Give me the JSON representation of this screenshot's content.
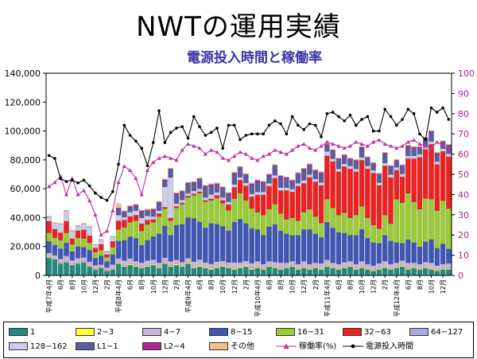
{
  "title": "NWTの運用実績",
  "subtitle": "電源投入時間と稼働率",
  "chart_data": {
    "type": "bar",
    "stacked": true,
    "title": "NWTの運用実績",
    "subtitle": "電源投入時間と稼働率",
    "xlabel": "",
    "ylabel": "",
    "ylim": [
      0,
      140000
    ],
    "y2lim": [
      0,
      100
    ],
    "yticks": [
      "0",
      "20,000",
      "40,000",
      "60,000",
      "80,000",
      "100,000",
      "120,000",
      "140,000"
    ],
    "y2ticks": [
      "0",
      "10",
      "20",
      "30",
      "40",
      "50",
      "60",
      "70",
      "80",
      "90",
      "100"
    ],
    "xtick_labels": [
      {
        "i": 0,
        "label": "平成7年4月"
      },
      {
        "i": 2,
        "label": "6月"
      },
      {
        "i": 4,
        "label": "8月"
      },
      {
        "i": 6,
        "label": "10月"
      },
      {
        "i": 8,
        "label": "12月"
      },
      {
        "i": 10,
        "label": "2月"
      },
      {
        "i": 12,
        "label": "平成8年4月"
      },
      {
        "i": 14,
        "label": "6月"
      },
      {
        "i": 16,
        "label": "8月"
      },
      {
        "i": 18,
        "label": "10月"
      },
      {
        "i": 20,
        "label": "12月"
      },
      {
        "i": 22,
        "label": "2月"
      },
      {
        "i": 24,
        "label": "平成9年4月"
      },
      {
        "i": 26,
        "label": "6月"
      },
      {
        "i": 28,
        "label": "8月"
      },
      {
        "i": 30,
        "label": "10月"
      },
      {
        "i": 32,
        "label": "12月"
      },
      {
        "i": 34,
        "label": "2月"
      },
      {
        "i": 36,
        "label": "平成10年4月"
      },
      {
        "i": 38,
        "label": "6月"
      },
      {
        "i": 40,
        "label": "8月"
      },
      {
        "i": 42,
        "label": "10月"
      },
      {
        "i": 44,
        "label": "12月"
      },
      {
        "i": 46,
        "label": "2月"
      },
      {
        "i": 48,
        "label": "平成11年4月"
      },
      {
        "i": 50,
        "label": "6月"
      },
      {
        "i": 52,
        "label": "8月"
      },
      {
        "i": 54,
        "label": "10月"
      },
      {
        "i": 56,
        "label": "12月"
      },
      {
        "i": 58,
        "label": "2月"
      },
      {
        "i": 60,
        "label": "平成12年4月"
      },
      {
        "i": 62,
        "label": "6月"
      },
      {
        "i": 64,
        "label": "8月"
      },
      {
        "i": 66,
        "label": "10月"
      },
      {
        "i": 68,
        "label": "12月"
      }
    ],
    "series": [
      {
        "name": "1",
        "color": "#1f8a80",
        "values": [
          12000,
          11000,
          8000,
          9000,
          7000,
          8000,
          9000,
          6000,
          4000,
          5000,
          3000,
          4000,
          8000,
          6000,
          7000,
          6000,
          5000,
          6000,
          7000,
          5000,
          8000,
          6000,
          7000,
          6000,
          8000,
          5000,
          6000,
          5000,
          4000,
          5000,
          6000,
          5000,
          4000,
          5000,
          6000,
          4000,
          5000,
          4000,
          6000,
          5000,
          4000,
          5000,
          6000,
          4000,
          5000,
          4000,
          5000,
          4000,
          6000,
          5000,
          4000,
          5000,
          6000,
          4000,
          5000,
          4000,
          3000,
          4000,
          5000,
          4000,
          5000,
          6000,
          4000,
          5000,
          4000,
          5000,
          4000,
          3000,
          4000,
          4000
        ]
      },
      {
        "name": "2−3",
        "color": "#ffff33",
        "values": [
          500,
          500,
          500,
          500,
          500,
          500,
          500,
          500,
          500,
          500,
          500,
          500,
          800,
          800,
          800,
          800,
          800,
          800,
          800,
          800,
          800,
          800,
          800,
          800,
          1000,
          1000,
          1000,
          1000,
          1000,
          1000,
          1000,
          1000,
          1000,
          1000,
          1000,
          1000,
          800,
          800,
          800,
          800,
          800,
          800,
          800,
          800,
          800,
          800,
          800,
          800,
          800,
          800,
          800,
          800,
          800,
          800,
          800,
          800,
          800,
          800,
          800,
          800,
          800,
          800,
          800,
          800,
          800,
          800,
          800,
          800,
          800,
          800
        ]
      },
      {
        "name": "4−7",
        "color": "#c9b4dd",
        "values": [
          3000,
          2500,
          3000,
          4000,
          3000,
          3500,
          3000,
          3000,
          2500,
          2000,
          2000,
          3000,
          3000,
          3500,
          4000,
          3000,
          3000,
          3500,
          3000,
          3000,
          3500,
          3000,
          3000,
          2500,
          3000,
          3500,
          4000,
          3000,
          3000,
          3500,
          3000,
          3000,
          4000,
          3000,
          3000,
          3500,
          4000,
          3000,
          3000,
          3500,
          4000,
          3000,
          3000,
          3000,
          4000,
          3000,
          3000,
          3500,
          4000,
          3000,
          3000,
          3500,
          3000,
          3000,
          4000,
          3000,
          3000,
          3500,
          4000,
          3000,
          3000,
          3500,
          4000,
          3000,
          3000,
          3500,
          4000,
          3000,
          3000,
          3500
        ]
      },
      {
        "name": "8−15",
        "color": "#3f56b6",
        "values": [
          8000,
          7000,
          7000,
          9000,
          6000,
          8000,
          7000,
          8000,
          5000,
          6000,
          4000,
          7000,
          12000,
          14000,
          15000,
          16000,
          12000,
          14000,
          16000,
          20000,
          22000,
          18000,
          24000,
          26000,
          28000,
          30000,
          26000,
          24000,
          28000,
          26000,
          24000,
          22000,
          28000,
          30000,
          26000,
          24000,
          22000,
          20000,
          24000,
          26000,
          22000,
          20000,
          18000,
          20000,
          22000,
          24000,
          20000,
          18000,
          26000,
          24000,
          22000,
          20000,
          18000,
          20000,
          22000,
          18000,
          16000,
          14000,
          18000,
          16000,
          14000,
          12000,
          16000,
          14000,
          12000,
          14000,
          16000,
          12000,
          14000,
          10000
        ]
      },
      {
        "name": "16−31",
        "color": "#99cc33",
        "values": [
          6000,
          5000,
          6000,
          7000,
          5000,
          6000,
          6000,
          5000,
          4000,
          4000,
          3000,
          5000,
          8000,
          9000,
          10000,
          12000,
          10000,
          11000,
          10000,
          12000,
          12000,
          10000,
          12000,
          14000,
          14000,
          16000,
          20000,
          18000,
          16000,
          18000,
          16000,
          14000,
          16000,
          18000,
          16000,
          14000,
          12000,
          14000,
          12000,
          14000,
          12000,
          10000,
          12000,
          10000,
          12000,
          14000,
          12000,
          10000,
          16000,
          14000,
          12000,
          14000,
          12000,
          14000,
          16000,
          14000,
          12000,
          10000,
          14000,
          12000,
          30000,
          28000,
          32000,
          28000,
          26000,
          30000,
          28000,
          26000,
          30000,
          28000
        ]
      },
      {
        "name": "32−63",
        "color": "#ee2020",
        "values": [
          8000,
          6000,
          5000,
          8000,
          4000,
          5000,
          6000,
          5000,
          3000,
          4000,
          2000,
          4000,
          6000,
          5000,
          4000,
          4000,
          5000,
          3000,
          2000,
          2000,
          1000,
          2000,
          1000,
          1000,
          1000,
          1000,
          1000,
          1000,
          1000,
          2000,
          2000,
          4000,
          8000,
          9000,
          10000,
          8000,
          12000,
          14000,
          16000,
          18000,
          16000,
          20000,
          18000,
          24000,
          20000,
          22000,
          24000,
          26000,
          30000,
          32000,
          30000,
          32000,
          34000,
          30000,
          32000,
          34000,
          36000,
          30000,
          34000,
          32000,
          20000,
          18000,
          24000,
          30000,
          36000,
          34000,
          38000,
          32000,
          34000,
          36000
        ]
      },
      {
        "name": "64−127",
        "color": "#aaaadd",
        "values": [
          0,
          0,
          0,
          0,
          0,
          0,
          0,
          0,
          0,
          0,
          0,
          0,
          0,
          0,
          0,
          0,
          0,
          0,
          0,
          0,
          0,
          0,
          0,
          0,
          0,
          0,
          0,
          0,
          0,
          0,
          0,
          0,
          0,
          0,
          0,
          0,
          0,
          0,
          0,
          0,
          0,
          0,
          0,
          0,
          0,
          0,
          0,
          0,
          0,
          0,
          0,
          0,
          0,
          0,
          0,
          0,
          0,
          0,
          0,
          0,
          0,
          0,
          0,
          0,
          0,
          0,
          0,
          0,
          0,
          0
        ]
      },
      {
        "name": "128−162",
        "color": "#ccccec",
        "values": [
          3000,
          4000,
          6000,
          7000,
          5000,
          3000,
          4000,
          6000,
          2000,
          3000,
          2000,
          3000,
          4000,
          2000,
          3000,
          3000,
          4000,
          3000,
          2000,
          2000,
          14000,
          28000,
          2000,
          2000,
          2000,
          2000,
          2000,
          2000,
          3000,
          2000,
          2000,
          2000,
          2000,
          2000,
          2000,
          2000,
          2000,
          2000,
          2000,
          2000,
          2000,
          2000,
          2000,
          2000,
          2000,
          2000,
          2000,
          2000,
          3000,
          2000,
          2000,
          2000,
          2000,
          2000,
          2000,
          2000,
          2000,
          2000,
          2000,
          2000,
          2000,
          2000,
          2000,
          2000,
          2000,
          2000,
          2000,
          2000,
          2000,
          2000
        ]
      },
      {
        "name": "L1−1",
        "color": "#5a5c9e",
        "values": [
          0,
          0,
          0,
          0,
          0,
          0,
          0,
          0,
          0,
          0,
          0,
          0,
          4000,
          3000,
          3000,
          3000,
          4000,
          3000,
          4000,
          5000,
          4000,
          5000,
          6000,
          5000,
          6000,
          5000,
          6000,
          7000,
          6000,
          5000,
          6000,
          5000,
          7000,
          6000,
          5000,
          6000,
          7000,
          6000,
          5000,
          6000,
          7000,
          6000,
          5000,
          6000,
          7000,
          6000,
          5000,
          6000,
          4000,
          5000,
          6000,
          5000,
          4000,
          5000,
          6000,
          5000,
          4000,
          5000,
          6000,
          5000,
          4000,
          5000,
          6000,
          5000,
          4000,
          5000,
          6000,
          5000,
          4000,
          5000
        ]
      },
      {
        "name": "L2−4",
        "color": "#b0279a",
        "values": [
          0,
          0,
          0,
          0,
          0,
          0,
          0,
          0,
          0,
          0,
          0,
          0,
          1000,
          1000,
          1000,
          1000,
          1000,
          1000,
          1000,
          1000,
          1000,
          1000,
          1000,
          1000,
          1000,
          1000,
          1000,
          1000,
          1000,
          1000,
          1000,
          1000,
          1000,
          1000,
          1000,
          1000,
          1000,
          1000,
          1000,
          1000,
          1000,
          1000,
          1000,
          1000,
          1000,
          1000,
          1000,
          1000,
          1000,
          1000,
          1000,
          1000,
          1000,
          1000,
          1000,
          1000,
          1000,
          1000,
          1000,
          1000,
          1000,
          1000,
          1000,
          1000,
          1000,
          1000,
          1000,
          1000,
          1000,
          1000
        ]
      },
      {
        "name": "その他",
        "color": "#f5c08a",
        "values": [
          500,
          500,
          500,
          500,
          500,
          500,
          500,
          500,
          500,
          500,
          500,
          500,
          3000,
          500,
          500,
          500,
          500,
          500,
          500,
          500,
          500,
          500,
          500,
          500,
          500,
          500,
          500,
          500,
          500,
          500,
          500,
          500,
          500,
          500,
          500,
          500,
          500,
          500,
          500,
          500,
          500,
          500,
          500,
          500,
          500,
          500,
          500,
          500,
          500,
          500,
          500,
          500,
          500,
          500,
          500,
          500,
          500,
          500,
          500,
          500,
          500,
          500,
          500,
          500,
          500,
          500,
          500,
          500,
          500,
          500
        ]
      }
    ],
    "lines": [
      {
        "name": "稼働率(%)",
        "color": "#c030a0",
        "axis": "right",
        "marker": "triangle",
        "values": [
          44,
          46,
          49,
          40,
          48,
          40,
          42,
          37,
          30,
          20,
          22,
          32,
          46,
          54,
          52,
          48,
          40,
          52,
          56,
          58,
          59,
          58,
          57,
          62,
          65,
          64,
          63,
          60,
          62,
          61,
          58,
          57,
          59,
          61,
          60,
          58,
          57,
          59,
          60,
          62,
          61,
          60,
          62,
          64,
          65,
          63,
          62,
          64,
          66,
          65,
          64,
          63,
          64,
          66,
          65,
          64,
          66,
          67,
          65,
          64,
          63,
          64,
          66,
          67,
          65,
          64,
          63,
          66,
          64,
          62
        ]
      },
      {
        "name": "電源投入時間",
        "color": "#000000",
        "axis": "left",
        "marker": "dot",
        "values": [
          83000,
          81000,
          67000,
          65000,
          66000,
          64000,
          66000,
          62000,
          57000,
          54000,
          52000,
          58000,
          77000,
          104000,
          97000,
          93000,
          88000,
          76000,
          92000,
          114000,
          92000,
          99000,
          102000,
          103000,
          95000,
          110000,
          103000,
          97000,
          99000,
          102000,
          88000,
          104000,
          104000,
          94000,
          97000,
          98000,
          98000,
          98000,
          104000,
          107000,
          105000,
          98000,
          110000,
          104000,
          101000,
          105000,
          104000,
          96000,
          112000,
          113000,
          110000,
          107000,
          111000,
          104000,
          108000,
          110000,
          100000,
          100000,
          115000,
          110000,
          104000,
          108000,
          115000,
          112000,
          98000,
          94000,
          116000,
          113000,
          116000,
          108000
        ]
      }
    ]
  },
  "legend": [
    {
      "label": "1",
      "kind": "swatch",
      "color": "#1f8a80"
    },
    {
      "label": "2−3",
      "kind": "swatch",
      "color": "#ffff33"
    },
    {
      "label": "4−7",
      "kind": "swatch",
      "color": "#c9b4dd"
    },
    {
      "label": "8−15",
      "kind": "swatch",
      "color": "#3f56b6"
    },
    {
      "label": "16−31",
      "kind": "swatch",
      "color": "#99cc33"
    },
    {
      "label": "32−63",
      "kind": "swatch",
      "color": "#ee2020"
    },
    {
      "label": "64−127",
      "kind": "swatch",
      "color": "#aaaadd"
    },
    {
      "label": "128−162",
      "kind": "swatch",
      "color": "#ccccec"
    },
    {
      "label": "L1−1",
      "kind": "swatch",
      "color": "#5a5c9e"
    },
    {
      "label": "L2−4",
      "kind": "swatch",
      "color": "#b0279a"
    },
    {
      "label": "その他",
      "kind": "swatch",
      "color": "#f5c08a"
    },
    {
      "label": "稼働率(%)",
      "kind": "triangle",
      "color": "#c030a0"
    },
    {
      "label": "電源投入時間",
      "kind": "dot",
      "color": "#000000"
    }
  ]
}
